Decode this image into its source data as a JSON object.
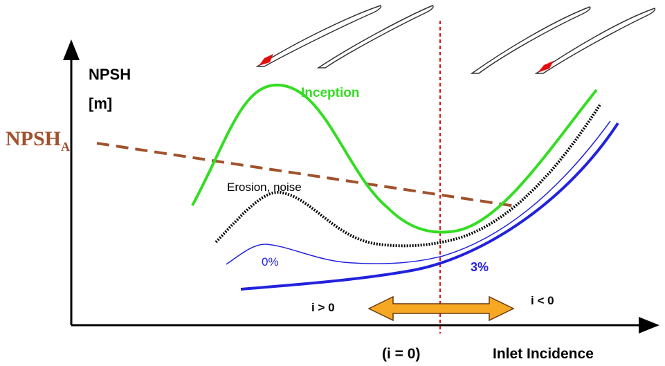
{
  "axis": {
    "y_label_line1": "NPSH",
    "y_label_line2": "[m]",
    "x_label": "Inlet Incidence",
    "zero_label": "(i = 0)"
  },
  "curves": {
    "npsh_a": {
      "main": "NPSH",
      "subscript": "A"
    },
    "inception": "Inception",
    "erosion": "Erosion, noise",
    "zero_percent": "0%",
    "three_percent": "3%"
  },
  "regions": {
    "positive": "i > 0",
    "negative": "i < 0"
  }
}
